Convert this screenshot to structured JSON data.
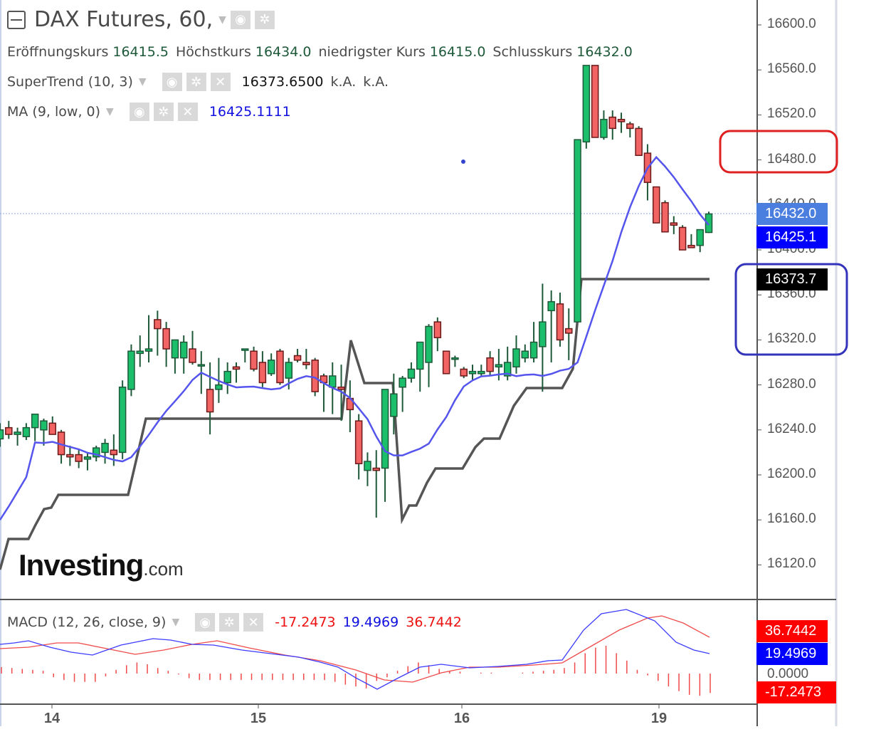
{
  "header": {
    "title": "DAX Futures, 60,",
    "ohlc": [
      {
        "label": "Eröffnungskurs",
        "value": "16415.5"
      },
      {
        "label": "Höchstkurs",
        "value": "16434.0"
      },
      {
        "label": "niedrigster Kurs",
        "value": "16415.0"
      },
      {
        "label": "Schlusskurs",
        "value": "16432.0"
      }
    ]
  },
  "indicators": {
    "supertrend": {
      "label": "SuperTrend (10, 3)",
      "value": "16373.6500",
      "extra1": "k.A.",
      "extra2": "k.A."
    },
    "ma": {
      "label": "MA (9, low, 0)",
      "value": "16425.1111"
    },
    "macd": {
      "label": "MACD (12, 26, close, 9)",
      "hist": "-17.2473",
      "macd": "19.4969",
      "signal": "36.7442"
    }
  },
  "watermark": {
    "brand": "Investing",
    "suffix": ".com"
  },
  "icons": {
    "eye": "eye-icon",
    "gear": "gear-icon",
    "close": "close-icon",
    "caret": "caret-down-icon",
    "collapse": "collapse-icon"
  },
  "price_axis": {
    "ticks": [
      "16600.0",
      "16560.0",
      "16520.0",
      "16480.0",
      "16440.0",
      "16400.0",
      "16360.0",
      "16320.0",
      "16280.0",
      "16240.0",
      "16200.0",
      "16160.0",
      "16120.0"
    ],
    "tags": {
      "last": "16432.0",
      "ma": "16425.1",
      "supertrend": "16373.7"
    }
  },
  "macd_axis": {
    "ticks": [
      "0.0000"
    ],
    "tags": {
      "signal": "36.7442",
      "macd": "19.4969",
      "hist": "-17.2473"
    }
  },
  "time_axis": {
    "ticks": [
      {
        "label": "14",
        "x": 73
      },
      {
        "label": "15",
        "x": 363
      },
      {
        "label": "16",
        "x": 649
      },
      {
        "label": "19",
        "x": 926
      }
    ]
  },
  "colors": {
    "up": "#1bbf6b",
    "down": "#f26363",
    "up_border": "#1e5a3a",
    "down_border": "#6b1a1a",
    "ma": "#5555ee",
    "supertrend": "#555555",
    "macd_line": "#3b3bff",
    "signal_line": "#f04a4a",
    "hist": "#f04a4a",
    "annotation_red": "#e02020",
    "annotation_blue": "#3333bb",
    "last_tag": "#4a7fe0",
    "ma_tag": "#0000ff"
  },
  "chart_data": {
    "type": "candlestick",
    "title": "DAX Futures, 60",
    "interval": "60 min",
    "x_ticks": [
      "14",
      "15",
      "16",
      "19"
    ],
    "y_range": [
      16100,
      16620
    ],
    "last_ohlc": {
      "open": 16415.5,
      "high": 16434.0,
      "low": 16415.0,
      "close": 16432.0
    },
    "candles": [
      [
        16232,
        16246,
        16225,
        16240
      ],
      [
        16242,
        16248,
        16232,
        16236
      ],
      [
        16236,
        16242,
        16226,
        16238
      ],
      [
        16234,
        16246,
        16231,
        16242
      ],
      [
        16242,
        16254,
        16230,
        16254
      ],
      [
        16240,
        16250,
        16226,
        16248
      ],
      [
        16246,
        16252,
        16236,
        16236
      ],
      [
        16238,
        16240,
        16210,
        16218
      ],
      [
        16218,
        16226,
        16208,
        16216
      ],
      [
        16218,
        16222,
        16206,
        16212
      ],
      [
        16214,
        16220,
        16204,
        16216
      ],
      [
        16216,
        16226,
        16212,
        16224
      ],
      [
        16220,
        16232,
        16210,
        16228
      ],
      [
        16222,
        16236,
        16208,
        16218
      ],
      [
        16220,
        16284,
        16214,
        16278
      ],
      [
        16276,
        16316,
        16270,
        16310
      ],
      [
        16308,
        16324,
        16296,
        16310
      ],
      [
        16310,
        16342,
        16300,
        16312
      ],
      [
        16338,
        16346,
        16306,
        16330
      ],
      [
        16330,
        16336,
        16296,
        16312
      ],
      [
        16304,
        16320,
        16290,
        16320
      ],
      [
        16304,
        16324,
        16290,
        16318
      ],
      [
        16312,
        16328,
        16298,
        16300
      ],
      [
        16298,
        16310,
        16272,
        16298
      ],
      [
        16276,
        16300,
        16236,
        16256
      ],
      [
        16276,
        16304,
        16264,
        16280
      ],
      [
        16282,
        16300,
        16272,
        16292
      ],
      [
        16296,
        16300,
        16282,
        16294
      ],
      [
        16312,
        16312,
        16300,
        16312
      ],
      [
        16310,
        16314,
        16292,
        16294
      ],
      [
        16300,
        16310,
        16278,
        16282
      ],
      [
        16290,
        16308,
        16288,
        16302
      ],
      [
        16310,
        16312,
        16280,
        16282
      ],
      [
        16286,
        16304,
        16276,
        16300
      ],
      [
        16306,
        16312,
        16300,
        16302
      ],
      [
        16300,
        16312,
        16294,
        16298
      ],
      [
        16302,
        16304,
        16270,
        16274
      ],
      [
        16288,
        16290,
        16256,
        16282
      ],
      [
        16278,
        16300,
        16254,
        16288
      ],
      [
        16278,
        16298,
        16248,
        16276
      ],
      [
        16268,
        16284,
        16238,
        16258
      ],
      [
        16248,
        16254,
        16196,
        16210
      ],
      [
        16204,
        16220,
        16190,
        16212
      ],
      [
        16206,
        16222,
        16162,
        16204
      ],
      [
        16206,
        16256,
        16176,
        16276
      ],
      [
        16252,
        16290,
        16236,
        16272
      ],
      [
        16278,
        16288,
        16256,
        16286
      ],
      [
        16286,
        16300,
        16282,
        16294
      ],
      [
        16294,
        16306,
        16274,
        16318
      ],
      [
        16300,
        16334,
        16278,
        16332
      ],
      [
        16336,
        16340,
        16310,
        16322
      ],
      [
        16310,
        16310,
        16290,
        16290
      ],
      [
        16304,
        16306,
        16296,
        16304
      ],
      [
        16294,
        16296,
        16286,
        16288
      ],
      [
        16290,
        16298,
        16284,
        16292
      ],
      [
        16290,
        16298,
        16288,
        16292
      ],
      [
        16304,
        16310,
        16288,
        16292
      ],
      [
        16296,
        16312,
        16284,
        16298
      ],
      [
        16288,
        16314,
        16284,
        16300
      ],
      [
        16296,
        16324,
        16290,
        16312
      ],
      [
        16304,
        16316,
        16300,
        16310
      ],
      [
        16304,
        16336,
        16300,
        16318
      ],
      [
        16314,
        16370,
        16274,
        16336
      ],
      [
        16346,
        16364,
        16300,
        16354
      ],
      [
        16352,
        16362,
        16314,
        16320
      ],
      [
        16330,
        16348,
        16302,
        16326
      ],
      [
        16336,
        16498,
        16336,
        16498
      ],
      [
        16496,
        16564,
        16490,
        16564
      ],
      [
        16564,
        16564,
        16500,
        16500
      ],
      [
        16500,
        16524,
        16498,
        16516
      ],
      [
        16518,
        16524,
        16498,
        16508
      ],
      [
        16516,
        16522,
        16504,
        16514
      ],
      [
        16512,
        16514,
        16500,
        16508
      ],
      [
        16508,
        16510,
        16484,
        16484
      ],
      [
        16486,
        16494,
        16444,
        16460
      ],
      [
        16456,
        16456,
        16424,
        16424
      ],
      [
        16442,
        16444,
        16416,
        16416
      ],
      [
        16424,
        16430,
        16414,
        16422
      ],
      [
        16420,
        16422,
        16400,
        16400
      ],
      [
        16404,
        16414,
        16404,
        16402
      ],
      [
        16404,
        16418,
        16398,
        16418
      ],
      [
        16415.5,
        16434,
        16415,
        16432
      ]
    ],
    "series": [
      {
        "name": "MA (9, low, 0)",
        "color": "#5555ee",
        "last": 16425.1111
      },
      {
        "name": "SuperTrend (10, 3)",
        "color": "#555555",
        "last": 16373.65
      },
      {
        "name": "MACD",
        "color": "#3b3bff",
        "last": 19.4969
      },
      {
        "name": "Signal",
        "color": "#f04a4a",
        "last": 36.7442
      },
      {
        "name": "Histogram",
        "color": "#f04a4a",
        "last": -17.2473
      }
    ],
    "annotations": [
      {
        "type": "rounded-rect",
        "color": "#e02020",
        "around": "16480.0"
      },
      {
        "type": "rounded-rect",
        "color": "#3333bb",
        "around": "16373.7 – 16320.0"
      }
    ]
  }
}
